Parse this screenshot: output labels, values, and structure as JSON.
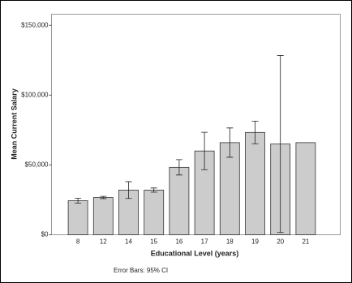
{
  "chart_data": {
    "type": "bar",
    "x_label": "Educational Level (years)",
    "y_label": "Mean Current Salary",
    "note": "Error Bars: 95% CI",
    "categories": [
      "8",
      "12",
      "14",
      "15",
      "16",
      "17",
      "18",
      "19",
      "20",
      "21"
    ],
    "values": [
      24400,
      26700,
      32000,
      32000,
      48300,
      60000,
      66000,
      73300,
      65000,
      66000
    ],
    "errors": [
      1800,
      800,
      6000,
      1500,
      5500,
      13400,
      10500,
      8100,
      63400,
      null
    ],
    "color": "#cccccc",
    "ylim": [
      0,
      158000
    ],
    "yticks": [
      {
        "value": 0,
        "label": "$0"
      },
      {
        "value": 50000,
        "label": "$50,000"
      },
      {
        "value": 100000,
        "label": "$100,000"
      },
      {
        "value": 150000,
        "label": "$150,000"
      }
    ]
  }
}
